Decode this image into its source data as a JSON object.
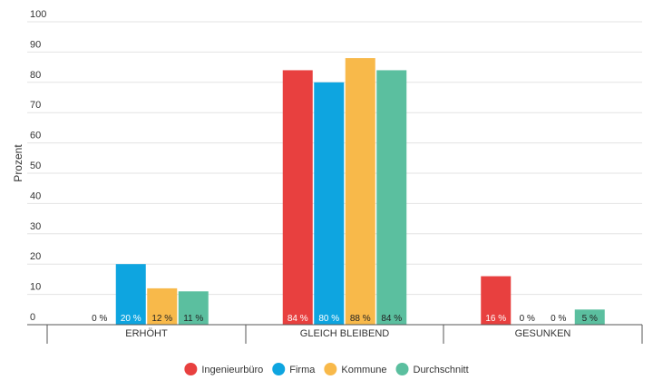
{
  "chart_data": {
    "type": "bar",
    "title": "",
    "xlabel": "",
    "ylabel": "Prozent",
    "ylim": [
      0,
      100
    ],
    "yticks": [
      0,
      10,
      20,
      30,
      40,
      50,
      60,
      70,
      80,
      90,
      100
    ],
    "categories": [
      "ERHÖHT",
      "GLEICH BLEIBEND",
      "GESUNKEN"
    ],
    "series": [
      {
        "name": "Ingenieurbüro",
        "color": "#e8403f",
        "values": [
          0,
          84,
          16
        ],
        "labels": [
          "0 %",
          "84 %",
          "16 %"
        ]
      },
      {
        "name": "Firma",
        "color": "#0ea5e0",
        "values": [
          20,
          80,
          0
        ],
        "labels": [
          "20 %",
          "80 %",
          "0 %"
        ]
      },
      {
        "name": "Kommune",
        "color": "#f8b94a",
        "values": [
          12,
          88,
          0
        ],
        "labels": [
          "12 %",
          "88 %",
          "0 %"
        ]
      },
      {
        "name": "Durchschnitt",
        "color": "#5bbf9f",
        "values": [
          11,
          84,
          5
        ],
        "labels": [
          "11 %",
          "84 %",
          "5 %"
        ]
      }
    ],
    "grid": true,
    "legend": "bottom"
  }
}
